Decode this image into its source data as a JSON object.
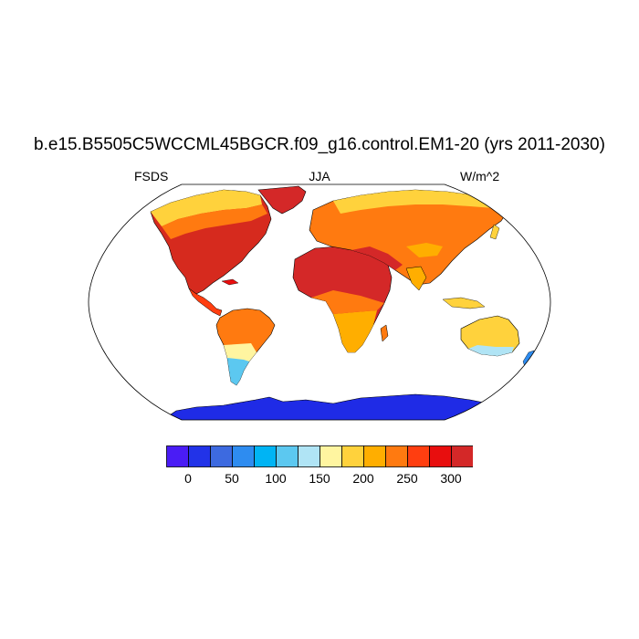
{
  "title": "b.e15.B5505C5WCCML45BGCR.f09_g16.control.EM1-20 (yrs 2011-2030)",
  "left_label": "FSDS",
  "center_label": "JJA",
  "right_label": "W/m^2",
  "colorbar": {
    "colors": [
      "#4a1cf5",
      "#2233e8",
      "#3d6ae0",
      "#2e8cf0",
      "#00b4f4",
      "#5cc8f0",
      "#b0e4f5",
      "#fff5a0",
      "#ffd23c",
      "#ffae00",
      "#ff7a10",
      "#ff3e10",
      "#e80e0e",
      "#d42828"
    ],
    "tick_labels": [
      "0",
      "50",
      "100",
      "150",
      "200",
      "250",
      "300"
    ]
  },
  "map_legend": {
    "ocean_fill": "#ffffff",
    "outline_color": "#000000"
  }
}
